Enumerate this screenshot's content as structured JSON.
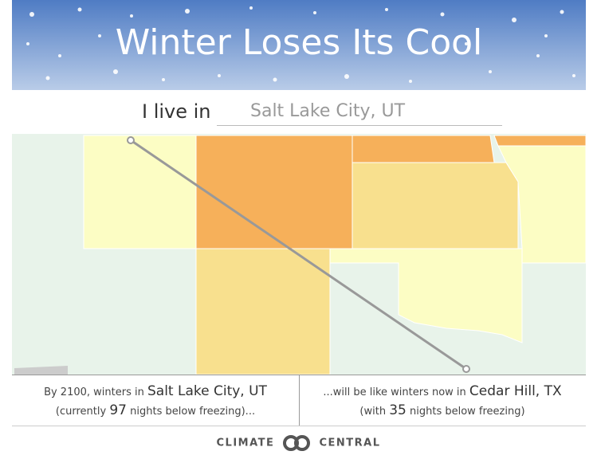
{
  "header": {
    "title": "Winter Loses Its Cool"
  },
  "search": {
    "label": "I live in",
    "value": "Salt Lake City, UT"
  },
  "result": {
    "left": {
      "prefix": "By 2100, winters in",
      "city": "Salt Lake City, UT",
      "detail_prefix": "(currently",
      "nights": 97,
      "detail_suffix": "nights below freezing)..."
    },
    "right": {
      "prefix": "...will be like winters now in",
      "city": "Cedar Hill, TX",
      "detail_prefix": "(with",
      "nights": 35,
      "detail_suffix": "nights below freezing)"
    }
  },
  "footer": {
    "left": "CLIMATE",
    "right": "CENTRAL"
  }
}
